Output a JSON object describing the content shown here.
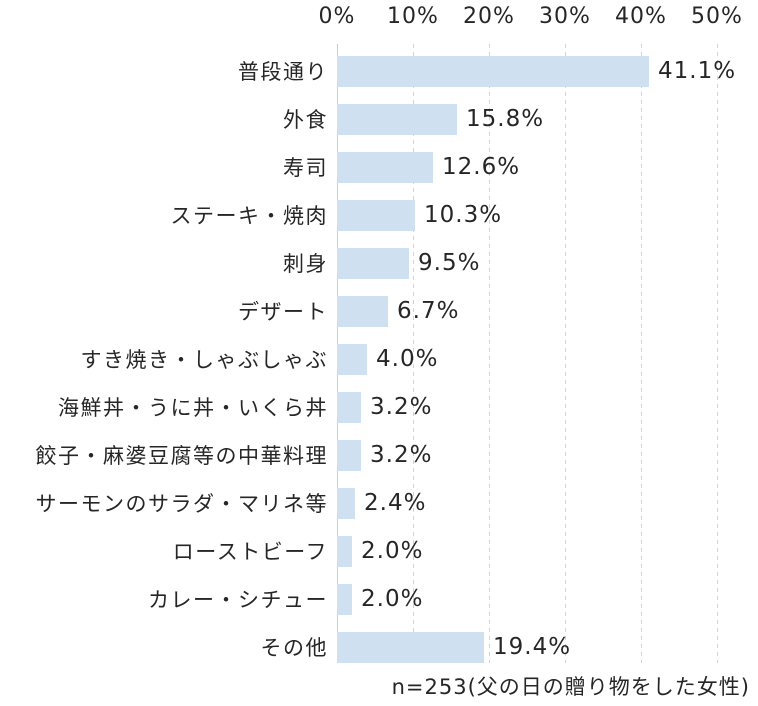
{
  "chart_data": {
    "type": "bar",
    "orientation": "horizontal",
    "title": "",
    "categories": [
      "普段通り",
      "外食",
      "寿司",
      "ステーキ・焼肉",
      "刺身",
      "デザート",
      "すき焼き・しゃぶしゃぶ",
      "海鮮丼・うに丼・いくら丼",
      "餃子・麻婆豆腐等の中華料理",
      "サーモンのサラダ・マリネ等",
      "ローストビーフ",
      "カレー・シチュー",
      "その他"
    ],
    "values": [
      41.1,
      15.8,
      12.6,
      10.3,
      9.5,
      6.7,
      4.0,
      3.2,
      3.2,
      2.4,
      2.0,
      2.0,
      19.4
    ],
    "value_labels": [
      "41.1%",
      "15.8%",
      "12.6%",
      "10.3%",
      "9.5%",
      "6.7%",
      "4.0%",
      "3.2%",
      "3.2%",
      "2.4%",
      "2.0%",
      "2.0%",
      "19.4%"
    ],
    "x_axis": {
      "position": "top",
      "min": 0,
      "max": 50,
      "ticks": [
        "0%",
        "10%",
        "20%",
        "30%",
        "40%",
        "50%"
      ],
      "grid": "dashed vertical"
    },
    "footnote": "n=253(父の日の贈り物をした女性)",
    "colors": {
      "bar": "#cfe0f0",
      "gridline": "#d3d3d3",
      "axis_line": "#cccccc",
      "text": "#262626",
      "background": "#ffffff"
    }
  }
}
